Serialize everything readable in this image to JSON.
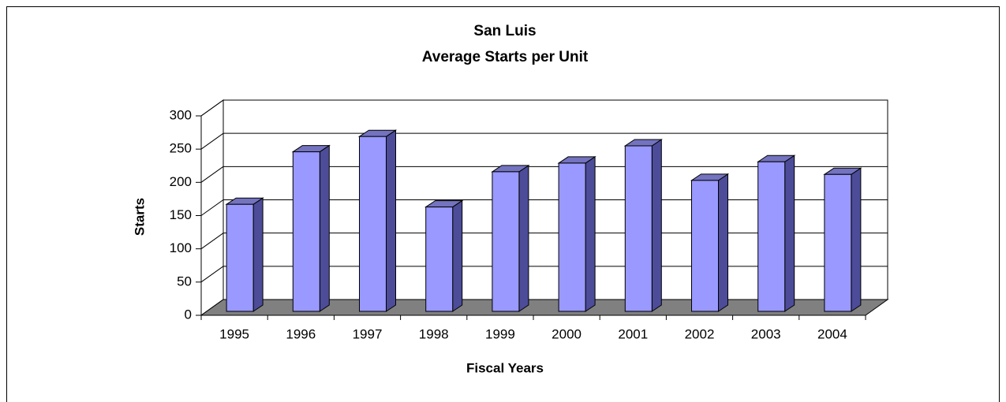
{
  "chart_data": {
    "type": "bar3d",
    "title": "San Luis",
    "subtitle": "Average Starts per Unit",
    "x_label": "Fiscal Years",
    "y_label": "Starts",
    "categories": [
      "1995",
      "1996",
      "1997",
      "1998",
      "1999",
      "2000",
      "2001",
      "2002",
      "2003",
      "2004"
    ],
    "values": [
      161,
      240,
      263,
      157,
      210,
      223,
      249,
      197,
      225,
      206
    ],
    "color": "#9999ff",
    "ylim": [
      0,
      300
    ],
    "yticks": [
      0,
      50,
      100,
      150,
      200,
      250,
      300
    ],
    "grid": true
  }
}
